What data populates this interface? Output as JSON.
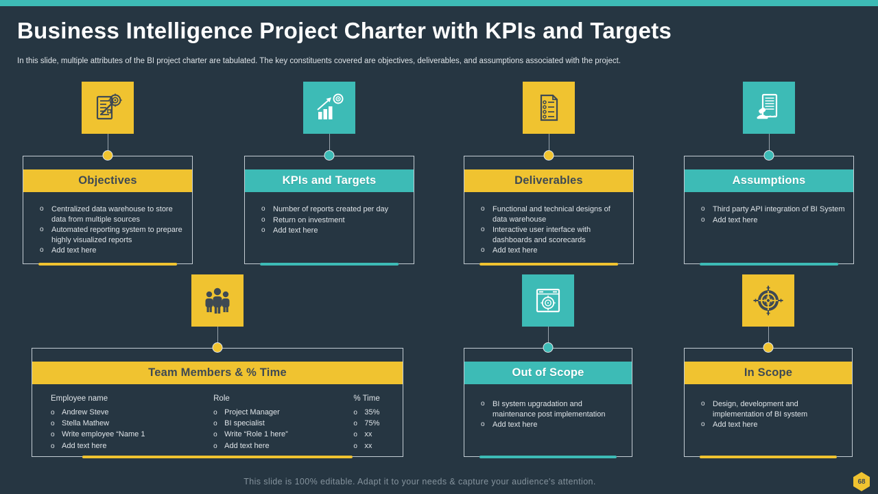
{
  "slide": {
    "title": "Business Intelligence Project Charter with KPIs and Targets",
    "subtitle": "In this slide, multiple attributes of the BI  project charter are tabulated. The key constituents covered are objectives, deliverables, and assumptions associated with the project.",
    "footer": "This slide is 100% editable. Adapt it to your needs & capture your audience's attention.",
    "page_number": "68"
  },
  "colors": {
    "background": "#263642",
    "top_bar": "#3DBBB6",
    "yellow": "#F0C330",
    "teal": "#3DBBB6",
    "dark_text": "#3E4953",
    "light_text": "#DFE4E8",
    "muted_text": "#85939D",
    "border": "#C6CFD6",
    "connector": "#9AA5AD",
    "white": "#FFFFFF"
  },
  "bullet_char": "o",
  "cards": [
    {
      "id": "objectives",
      "title": "Objectives",
      "accent": "yellow",
      "icon": "clipboard-target-icon",
      "bullets": [
        "Centralized data warehouse to store data from multiple sources",
        "Automated reporting system to prepare highly visualized  reports",
        "Add text here"
      ]
    },
    {
      "id": "kpis",
      "title": "KPIs and Targets",
      "accent": "teal",
      "icon": "growth-chart-target-icon",
      "bullets": [
        "Number of reports created per day",
        "Return on investment",
        "Add text here"
      ]
    },
    {
      "id": "deliverables",
      "title": "Deliverables",
      "accent": "yellow",
      "icon": "checklist-document-icon",
      "bullets": [
        "Functional and technical designs of data warehouse",
        "Interactive  user interface with dashboards and scorecards",
        "Add text here"
      ]
    },
    {
      "id": "assumptions",
      "title": "Assumptions",
      "accent": "teal",
      "icon": "stamped-document-icon",
      "bullets": [
        "Third party API integration of BI System",
        "Add text here"
      ]
    },
    {
      "id": "out-of-scope",
      "title": "Out of Scope",
      "accent": "teal",
      "icon": "scope-window-icon",
      "bullets": [
        "BI system upgradation and maintenance post implementation",
        "Add text here"
      ]
    },
    {
      "id": "in-scope",
      "title": "In Scope",
      "accent": "yellow",
      "icon": "target-crosshair-icon",
      "bullets": [
        "Design, development and implementation of BI system",
        "Add text here"
      ]
    }
  ],
  "team": {
    "title": "Team Members & % Time",
    "accent": "yellow",
    "icon": "team-group-icon",
    "columns": [
      {
        "header": "Employee name",
        "items": [
          "Andrew Steve",
          "Stella Mathew",
          "Write employee “Name 1",
          "Add text here"
        ]
      },
      {
        "header": "Role",
        "items": [
          "Project Manager",
          "BI specialist",
          "Write “Role 1 here”",
          "Add text here"
        ]
      },
      {
        "header": "% Time",
        "items": [
          "35%",
          "75%",
          "xx",
          "xx"
        ]
      }
    ]
  }
}
